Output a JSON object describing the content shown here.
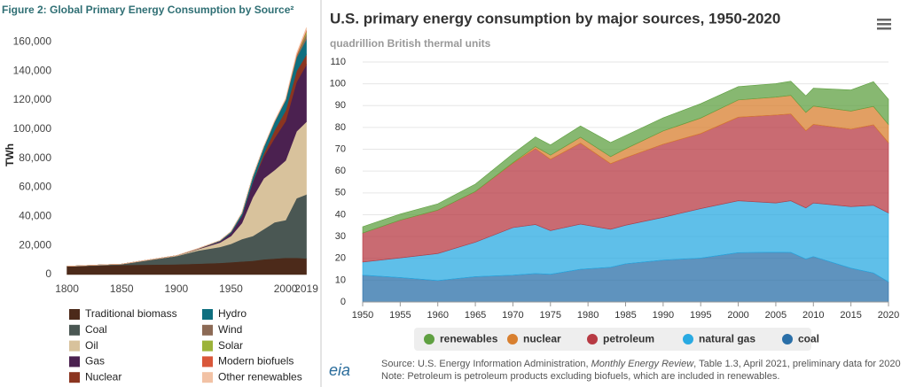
{
  "chart_data": [
    {
      "type": "area",
      "stacked": true,
      "title": "Figure 2: Global Primary Energy Consumption by Source²",
      "y_label": "TWh",
      "x": [
        1800,
        1850,
        1900,
        1920,
        1940,
        1950,
        1960,
        1970,
        1980,
        1990,
        2000,
        2010,
        2019
      ],
      "xlim": [
        1789,
        2021
      ],
      "xticks": [
        1800,
        1850,
        1900,
        1950,
        2000,
        2019
      ],
      "ylim": [
        0,
        170000
      ],
      "yticks": [
        0,
        {
          "value": 20000,
          "label": "20,000"
        },
        {
          "value": 40000,
          "label": "40,000"
        },
        {
          "value": 60000,
          "label": "60,000"
        },
        {
          "value": 80000,
          "label": "80,000"
        },
        {
          "value": 100000,
          "label": "100,000"
        },
        {
          "value": 120000,
          "label": "120,000"
        },
        {
          "value": 140000,
          "label": "140,000"
        },
        {
          "value": 160000,
          "label": "160,000"
        }
      ],
      "grid": false,
      "legend": "bottom",
      "series": [
        {
          "name": "Traditional biomass",
          "color": "#4c2a1a",
          "values": [
            5600,
            6600,
            7000,
            7500,
            8000,
            8500,
            9000,
            9500,
            10500,
            11000,
            11500,
            11500,
            11100
          ]
        },
        {
          "name": "Coal",
          "color": "#4a5753",
          "values": [
            100,
            600,
            5700,
            9000,
            11000,
            12600,
            15400,
            17000,
            20700,
            25000,
            26000,
            41000,
            44000
          ]
        },
        {
          "name": "Oil",
          "color": "#d8c29c",
          "values": [
            0,
            0,
            200,
            1000,
            3000,
            5400,
            11000,
            26700,
            35000,
            36000,
            41000,
            46000,
            50000
          ]
        },
        {
          "name": "Gas",
          "color": "#4b2150",
          "values": [
            0,
            0,
            60,
            250,
            900,
            2100,
            5000,
            10600,
            15000,
            22000,
            27000,
            34000,
            39300
          ]
        },
        {
          "name": "Nuclear",
          "color": "#8b3520",
          "values": [
            0,
            0,
            0,
            0,
            0,
            0,
            0,
            200,
            1900,
            5500,
            7300,
            7500,
            7000
          ]
        },
        {
          "name": "Hydro",
          "color": "#0e6f7f",
          "values": [
            0,
            0,
            0,
            100,
            500,
            900,
            1900,
            3500,
            4700,
            5800,
            7300,
            9200,
            10500
          ]
        },
        {
          "name": "Wind",
          "color": "#8c6a55",
          "values": [
            0,
            0,
            0,
            0,
            0,
            0,
            0,
            0,
            0,
            0,
            80,
            900,
            3500
          ]
        },
        {
          "name": "Solar",
          "color": "#9cb33a",
          "values": [
            0,
            0,
            0,
            0,
            0,
            0,
            0,
            0,
            0,
            0,
            0,
            80,
            1800
          ]
        },
        {
          "name": "Modern biofuels",
          "color": "#d9573a",
          "values": [
            0,
            0,
            0,
            0,
            0,
            0,
            0,
            0,
            0,
            300,
            300,
            1000,
            1100
          ]
        },
        {
          "name": "Other renewables",
          "color": "#f2c2a5",
          "values": [
            0,
            0,
            0,
            0,
            0,
            0,
            0,
            0,
            0,
            400,
            600,
            1000,
            1600
          ]
        }
      ]
    },
    {
      "type": "area",
      "stacked": true,
      "title": "U.S. primary energy consumption by major sources, 1950-2020",
      "subtitle": "quadrillion British thermal units",
      "x": [
        1950,
        1955,
        1960,
        1965,
        1970,
        1973,
        1975,
        1979,
        1983,
        1985,
        1990,
        1995,
        2000,
        2005,
        2007,
        2009,
        2010,
        2015,
        2018,
        2020
      ],
      "xlim": [
        1950,
        2020
      ],
      "xticks": [
        1950,
        1955,
        1960,
        1965,
        1970,
        1975,
        1980,
        1985,
        1990,
        1995,
        2000,
        2005,
        2010,
        2015,
        2020
      ],
      "ylim": [
        0,
        110
      ],
      "yticks": [
        0,
        10,
        20,
        30,
        40,
        50,
        60,
        70,
        80,
        90,
        100,
        110
      ],
      "grid": true,
      "legend": "bottom",
      "series": [
        {
          "name": "coal",
          "color": "#2a6fa8",
          "values": [
            12.3,
            11.2,
            9.8,
            11.6,
            12.3,
            13.0,
            12.7,
            15.0,
            15.9,
            17.5,
            19.2,
            20.1,
            22.6,
            22.8,
            22.7,
            19.7,
            20.8,
            15.5,
            13.3,
            9.2
          ]
        },
        {
          "name": "natural gas",
          "color": "#29aae2",
          "values": [
            6.0,
            9.0,
            12.4,
            15.8,
            21.8,
            22.5,
            20.0,
            20.7,
            17.4,
            17.7,
            19.6,
            22.7,
            23.8,
            22.6,
            23.7,
            23.4,
            24.6,
            28.2,
            31.0,
            31.6
          ]
        },
        {
          "name": "petroleum",
          "color": "#b73a43",
          "values": [
            13.3,
            17.3,
            19.9,
            23.2,
            29.5,
            34.8,
            32.7,
            37.1,
            30.1,
            30.9,
            33.5,
            34.4,
            38.3,
            40.3,
            39.8,
            35.4,
            36.0,
            35.5,
            36.9,
            32.2
          ]
        },
        {
          "name": "nuclear",
          "color": "#d87f2f",
          "values": [
            0,
            0,
            0.01,
            0.04,
            0.24,
            0.91,
            1.9,
            2.7,
            3.2,
            4.1,
            6.1,
            7.1,
            7.9,
            8.2,
            8.5,
            8.4,
            8.4,
            8.3,
            8.4,
            8.3
          ]
        },
        {
          "name": "renewables",
          "color": "#5fa041",
          "values": [
            2.9,
            2.8,
            2.9,
            3.4,
            4.1,
            4.4,
            4.7,
            5.2,
            6.5,
            6.1,
            6.0,
            6.6,
            6.1,
            6.2,
            6.5,
            7.6,
            8.2,
            9.7,
            11.4,
            11.6
          ]
        }
      ],
      "source": [
        "Source: U.S. Energy Information Administration, ",
        "Monthly Energy Review",
        ", Table 1.3, April 2021, preliminary data for 2020"
      ],
      "note": "Note: Petroleum is petroleum products excluding biofuels, which are included in renewables.",
      "logo": "eia"
    }
  ]
}
